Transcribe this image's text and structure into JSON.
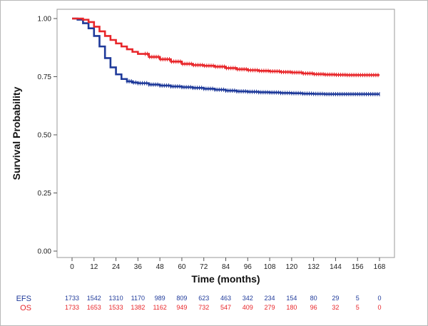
{
  "chart_data": {
    "type": "line",
    "subtype": "kaplan-meier",
    "xlabel": "Time (months)",
    "ylabel": "Survival Probability",
    "xlim": [
      0,
      168
    ],
    "ylim": [
      0,
      1
    ],
    "x_ticks": [
      "0",
      "12",
      "24",
      "36",
      "48",
      "60",
      "72",
      "84",
      "96",
      "108",
      "120",
      "132",
      "144",
      "156",
      "168"
    ],
    "y_ticks": [
      "0.00",
      "0.25",
      "0.50",
      "0.75",
      "1.00"
    ],
    "grid": false,
    "series": [
      {
        "name": "EFS",
        "color": "#1f3a9a",
        "censor_from": 30,
        "x": [
          0,
          3,
          6,
          9,
          12,
          15,
          18,
          21,
          24,
          27,
          30,
          33,
          36,
          42,
          48,
          54,
          60,
          66,
          72,
          78,
          84,
          90,
          96,
          102,
          108,
          114,
          120,
          126,
          132,
          138,
          144,
          150,
          156,
          162,
          168
        ],
        "y": [
          1.0,
          0.995,
          0.98,
          0.958,
          0.925,
          0.88,
          0.83,
          0.79,
          0.76,
          0.74,
          0.73,
          0.725,
          0.722,
          0.716,
          0.712,
          0.708,
          0.705,
          0.702,
          0.698,
          0.694,
          0.69,
          0.687,
          0.685,
          0.683,
          0.682,
          0.68,
          0.679,
          0.677,
          0.676,
          0.675,
          0.675,
          0.675,
          0.675,
          0.675,
          0.675
        ]
      },
      {
        "name": "OS",
        "color": "#e8262a",
        "censor_from": 40,
        "x": [
          0,
          3,
          6,
          9,
          12,
          15,
          18,
          21,
          24,
          27,
          30,
          33,
          36,
          42,
          48,
          54,
          60,
          66,
          72,
          78,
          84,
          90,
          96,
          102,
          108,
          114,
          120,
          126,
          132,
          138,
          144,
          150,
          156,
          162,
          168
        ],
        "y": [
          1.0,
          1.0,
          0.995,
          0.985,
          0.965,
          0.945,
          0.925,
          0.908,
          0.893,
          0.88,
          0.868,
          0.857,
          0.848,
          0.835,
          0.825,
          0.815,
          0.805,
          0.8,
          0.797,
          0.793,
          0.787,
          0.782,
          0.778,
          0.775,
          0.773,
          0.77,
          0.768,
          0.764,
          0.761,
          0.759,
          0.758,
          0.757,
          0.757,
          0.757,
          0.757
        ]
      }
    ],
    "risk_table": {
      "times": [
        0,
        12,
        24,
        36,
        48,
        60,
        72,
        84,
        96,
        108,
        120,
        132,
        144,
        156,
        168
      ],
      "rows": [
        {
          "label": "EFS",
          "color": "#1f3a9a",
          "values": [
            "1733",
            "1542",
            "1310",
            "1170",
            "989",
            "809",
            "623",
            "463",
            "342",
            "234",
            "154",
            "80",
            "29",
            "5",
            "0"
          ]
        },
        {
          "label": "OS",
          "color": "#e8262a",
          "values": [
            "1733",
            "1653",
            "1533",
            "1382",
            "1162",
            "949",
            "732",
            "547",
            "409",
            "279",
            "180",
            "96",
            "32",
            "5",
            "0"
          ]
        }
      ]
    }
  }
}
